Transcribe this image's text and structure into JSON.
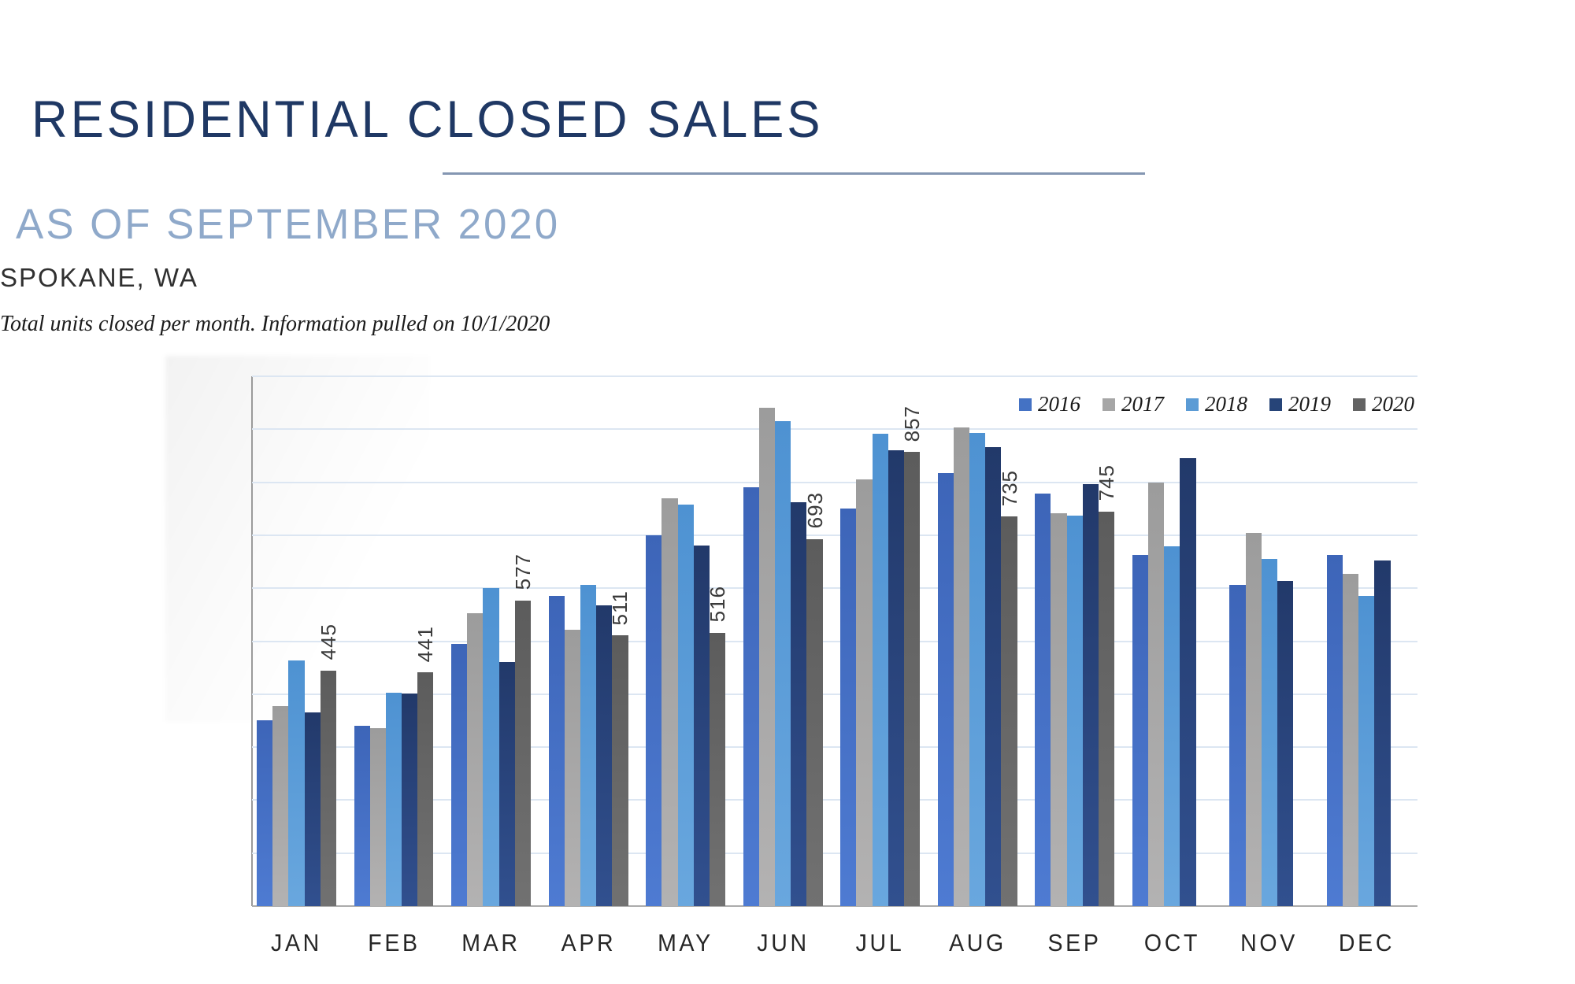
{
  "header": {
    "title": "RESIDENTIAL CLOSED SALES",
    "subtitle": "AS OF SEPTEMBER 2020",
    "location": "SPOKANE, WA",
    "note": "Total units closed per month.  Information pulled on 10/1/2020"
  },
  "chart_data": {
    "type": "bar",
    "title": "Residential Closed Sales",
    "categories": [
      "JAN",
      "FEB",
      "MAR",
      "APR",
      "MAY",
      "JUN",
      "JUL",
      "AUG",
      "SEP",
      "OCT",
      "NOV",
      "DEC"
    ],
    "series": [
      {
        "name": "2016",
        "color": "#4472C4",
        "color_top": "#3D65B8",
        "color_bottom": "#4E7BD2",
        "show_data_labels": false,
        "values": [
          351,
          341,
          495,
          585,
          700,
          790,
          750,
          818,
          778,
          663,
          607,
          663
        ]
      },
      {
        "name": "2017",
        "color": "#A6A6A6",
        "color_top": "#9C9C9C",
        "color_bottom": "#B3B2B2",
        "show_data_labels": false,
        "values": [
          378,
          336,
          553,
          522,
          770,
          941,
          806,
          903,
          742,
          800,
          705,
          627
        ]
      },
      {
        "name": "2018",
        "color": "#5B9BD5",
        "color_top": "#4E92D2",
        "color_bottom": "#69A7DE",
        "show_data_labels": false,
        "values": [
          464,
          403,
          601,
          607,
          758,
          916,
          892,
          893,
          737,
          679,
          655,
          586
        ]
      },
      {
        "name": "2019",
        "color": "#264478",
        "color_top": "#22396A",
        "color_bottom": "#31508F",
        "show_data_labels": false,
        "values": [
          366,
          401,
          460,
          567,
          680,
          762,
          860,
          866,
          796,
          845,
          614,
          652
        ]
      },
      {
        "name": "2020",
        "color": "#636363",
        "color_top": "#5C5C5C",
        "color_bottom": "#717171",
        "show_data_labels": true,
        "values": [
          445,
          441,
          577,
          511,
          516,
          693,
          857,
          735,
          745,
          null,
          null,
          null
        ]
      }
    ],
    "ylabel": "",
    "xlabel": "",
    "ylim": [
      0,
      1000
    ],
    "ytick_step": 100,
    "grid": "horizontal",
    "legend_position": "top-right"
  }
}
